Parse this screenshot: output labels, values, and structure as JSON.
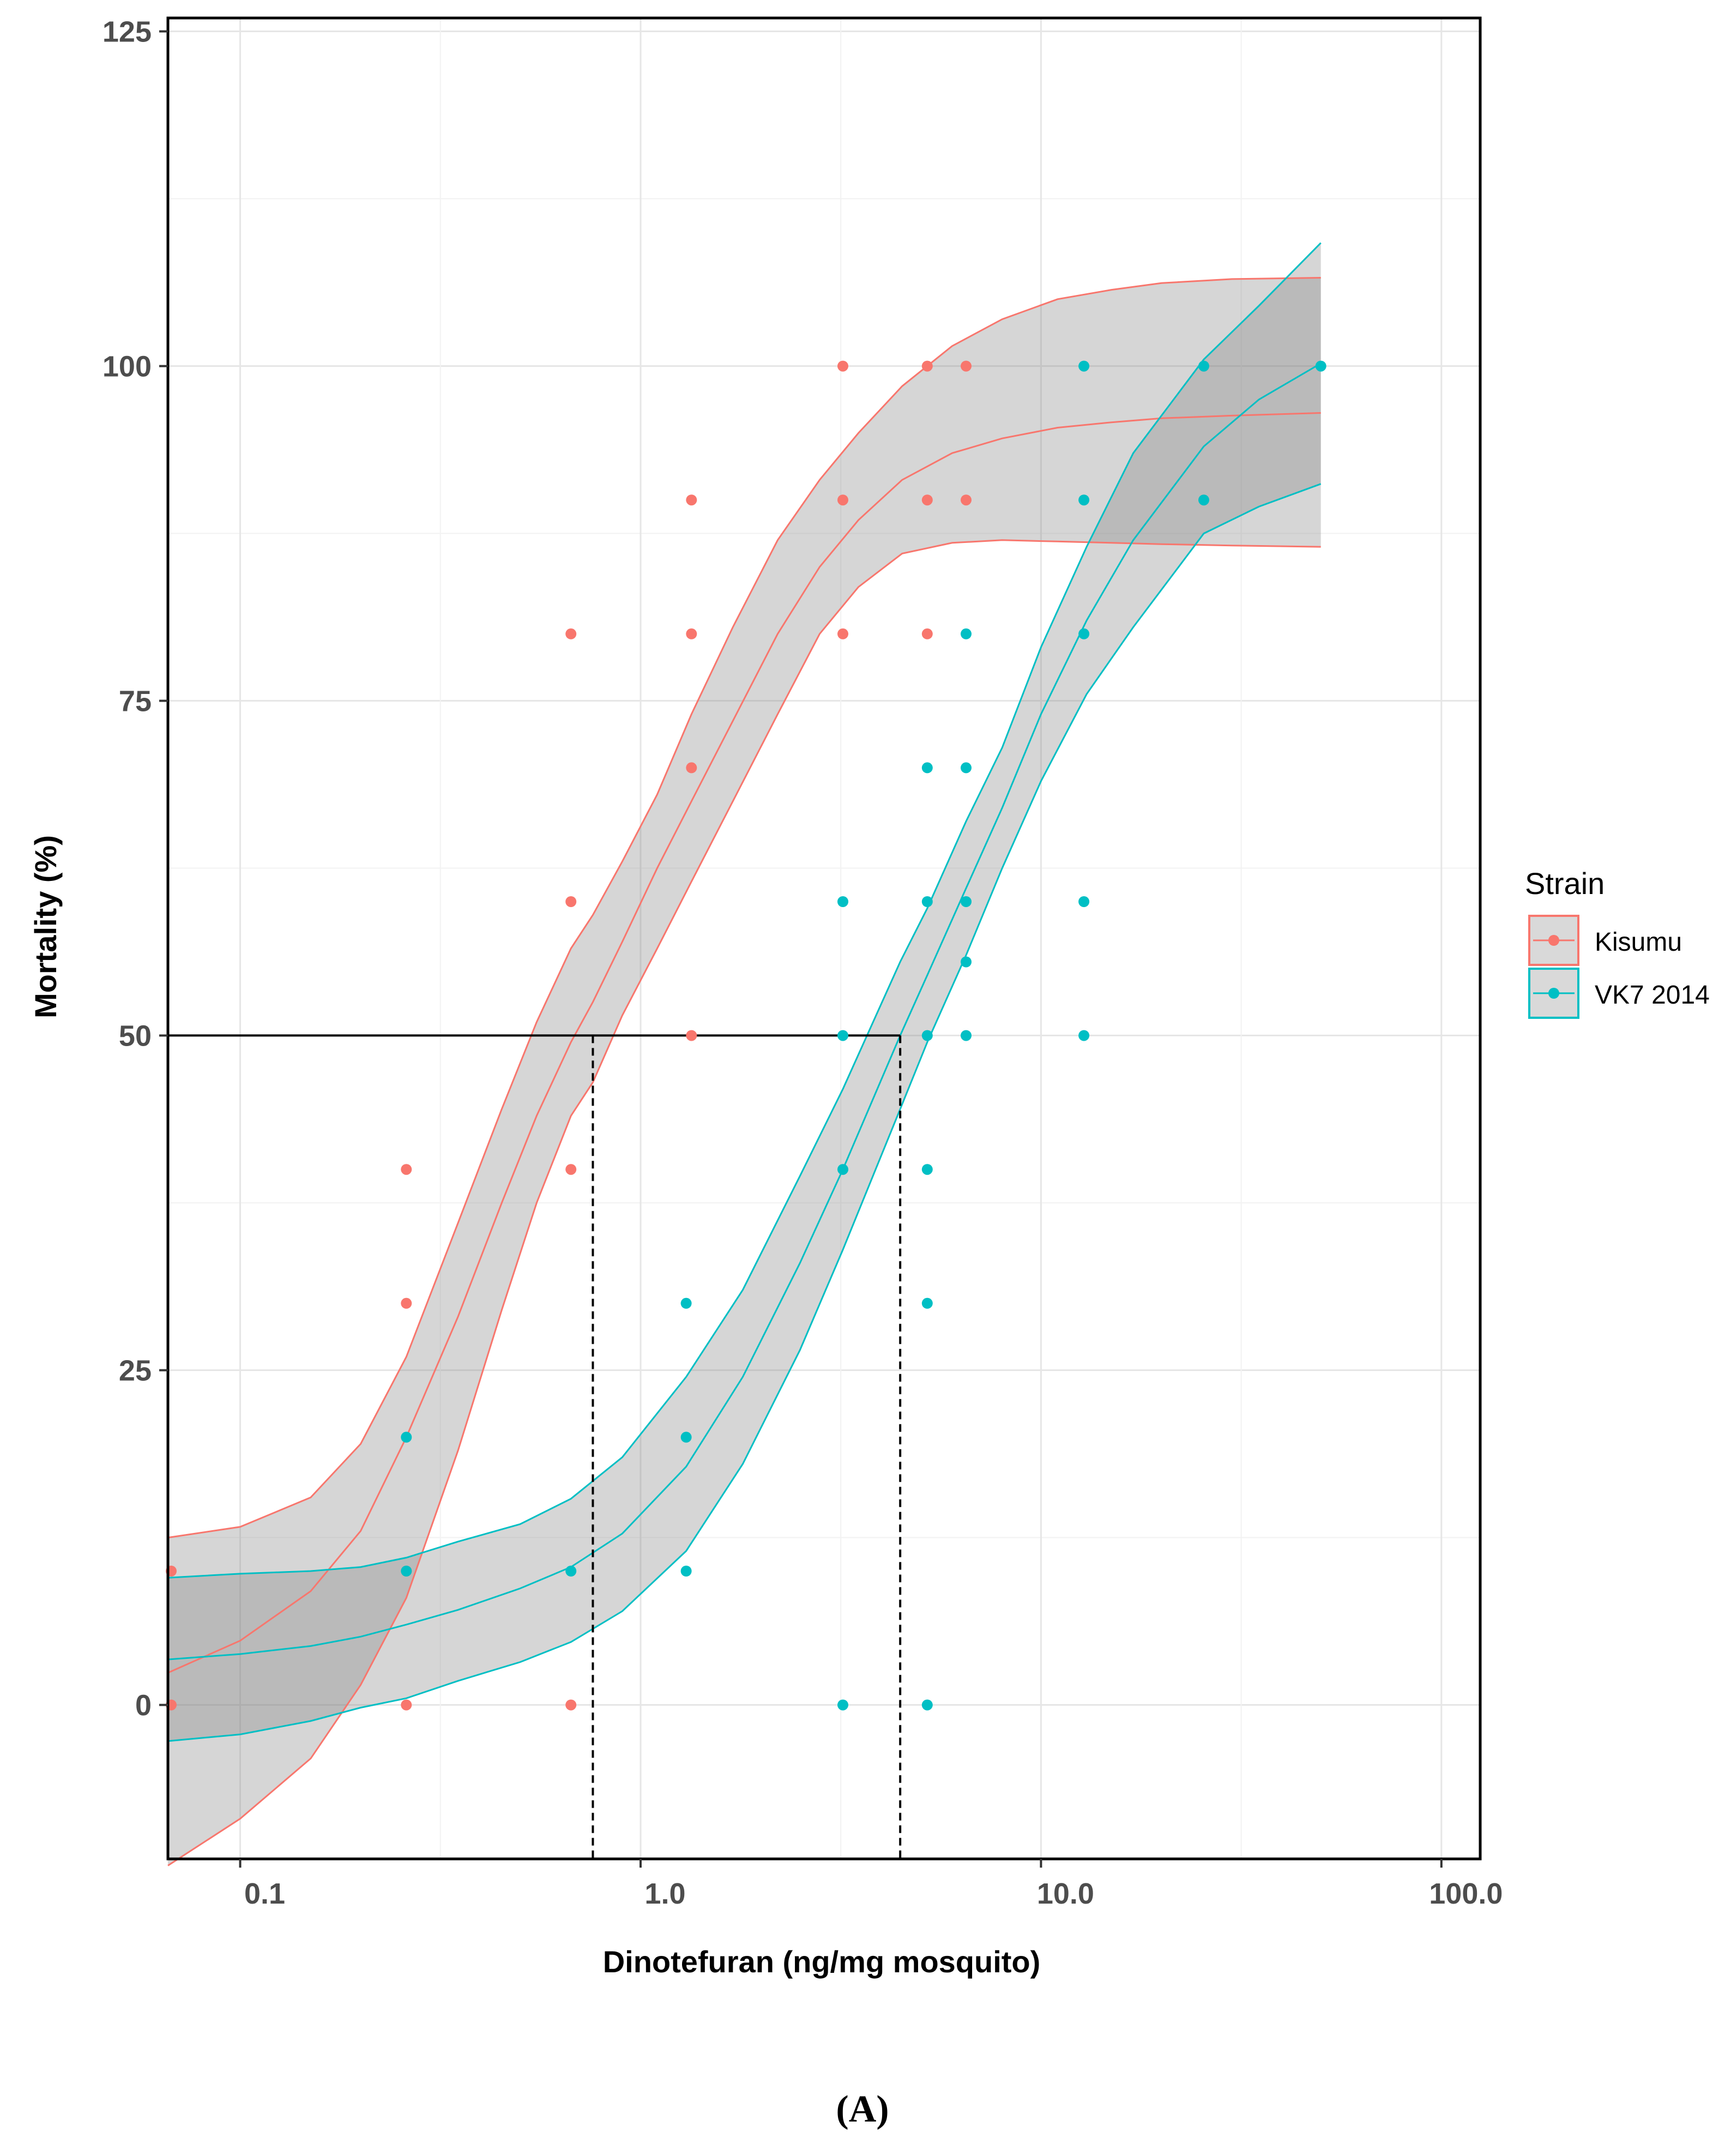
{
  "chart_data": {
    "type": "scatter",
    "title": "",
    "xlabel": "Dinotefuran (ng/mg mosquito)",
    "ylabel": "Mortality (%)",
    "x_scale": "log10",
    "xlim": [
      0.066,
      125
    ],
    "ylim": [
      -11.5,
      126
    ],
    "x_ticks": [
      {
        "value": 0.1,
        "label": "0.1"
      },
      {
        "value": 1,
        "label": "1.0"
      },
      {
        "value": 10,
        "label": "10.0"
      },
      {
        "value": 100,
        "label": "100.0"
      }
    ],
    "y_ticks": [
      {
        "value": 0,
        "label": "0"
      },
      {
        "value": 25,
        "label": "25"
      },
      {
        "value": 50,
        "label": "50"
      },
      {
        "value": 75,
        "label": "75"
      },
      {
        "value": 100,
        "label": "100"
      },
      {
        "value": 125,
        "label": "125"
      }
    ],
    "grid": true,
    "legend": {
      "title": "Strain",
      "position": "right"
    },
    "panel_label": "(A)",
    "reference_lines": {
      "y": 50,
      "x_lc50": [
        0.76,
        4.45
      ]
    },
    "series": [
      {
        "name": "Kisumu",
        "color": "#f8766d",
        "lc50": 0.76,
        "points": [
          {
            "x": 0.066,
            "y": 10
          },
          {
            "x": 0.066,
            "y": 0
          },
          {
            "x": 0.26,
            "y": 40
          },
          {
            "x": 0.26,
            "y": 30
          },
          {
            "x": 0.26,
            "y": 10
          },
          {
            "x": 0.26,
            "y": 0
          },
          {
            "x": 0.67,
            "y": 80
          },
          {
            "x": 0.67,
            "y": 60
          },
          {
            "x": 0.67,
            "y": 40
          },
          {
            "x": 0.67,
            "y": 0
          },
          {
            "x": 1.34,
            "y": 90
          },
          {
            "x": 1.34,
            "y": 80
          },
          {
            "x": 1.34,
            "y": 70
          },
          {
            "x": 1.34,
            "y": 50
          },
          {
            "x": 3.2,
            "y": 100
          },
          {
            "x": 3.2,
            "y": 90
          },
          {
            "x": 3.2,
            "y": 80
          },
          {
            "x": 5.2,
            "y": 100
          },
          {
            "x": 5.2,
            "y": 90
          },
          {
            "x": 5.2,
            "y": 80
          },
          {
            "x": 6.5,
            "y": 100
          },
          {
            "x": 6.5,
            "y": 90
          }
        ],
        "fit": {
          "x": [
            0.066,
            0.1,
            0.15,
            0.2,
            0.26,
            0.35,
            0.45,
            0.55,
            0.67,
            0.76,
            0.9,
            1.1,
            1.34,
            1.7,
            2.2,
            2.8,
            3.5,
            4.5,
            6,
            8,
            11,
            15,
            20,
            30,
            50
          ],
          "y": [
            2.4,
            4.8,
            8.5,
            13,
            20,
            29,
            37.5,
            44,
            49.5,
            52.5,
            57,
            62.5,
            67.5,
            73.5,
            80,
            85,
            88.5,
            91.5,
            93.5,
            94.6,
            95.4,
            95.8,
            96.1,
            96.3,
            96.5
          ],
          "lower": [
            -12,
            -8.5,
            -4,
            1.5,
            8,
            19,
            29.5,
            37.5,
            44,
            46.5,
            51.5,
            56.5,
            61.5,
            67.5,
            74,
            80,
            83.5,
            86,
            86.8,
            87,
            86.9,
            86.8,
            86.7,
            86.6,
            86.5
          ],
          "upper": [
            12.5,
            13.3,
            15.5,
            19.5,
            26,
            36,
            44.5,
            51,
            56.5,
            59,
            63,
            68,
            74,
            80.5,
            87,
            91.5,
            95,
            98.5,
            101.5,
            103.5,
            105,
            105.7,
            106.2,
            106.5,
            106.6
          ]
        }
      },
      {
        "name": "VK7 2014",
        "color": "#00bfc4",
        "lc50": 4.45,
        "points": [
          {
            "x": 0.26,
            "y": 20
          },
          {
            "x": 0.26,
            "y": 10
          },
          {
            "x": 0.67,
            "y": 10
          },
          {
            "x": 1.3,
            "y": 30
          },
          {
            "x": 1.3,
            "y": 20
          },
          {
            "x": 1.3,
            "y": 10
          },
          {
            "x": 3.2,
            "y": 60
          },
          {
            "x": 3.2,
            "y": 50
          },
          {
            "x": 3.2,
            "y": 40
          },
          {
            "x": 3.2,
            "y": 0
          },
          {
            "x": 5.2,
            "y": 70
          },
          {
            "x": 5.2,
            "y": 60
          },
          {
            "x": 5.2,
            "y": 50
          },
          {
            "x": 5.2,
            "y": 40
          },
          {
            "x": 5.2,
            "y": 30
          },
          {
            "x": 5.2,
            "y": 0
          },
          {
            "x": 6.5,
            "y": 80
          },
          {
            "x": 6.5,
            "y": 70
          },
          {
            "x": 6.5,
            "y": 60
          },
          {
            "x": 6.5,
            "y": 55.5
          },
          {
            "x": 6.5,
            "y": 50
          },
          {
            "x": 12.8,
            "y": 100
          },
          {
            "x": 12.8,
            "y": 90
          },
          {
            "x": 12.8,
            "y": 80
          },
          {
            "x": 12.8,
            "y": 60
          },
          {
            "x": 12.8,
            "y": 50
          },
          {
            "x": 25.5,
            "y": 100
          },
          {
            "x": 25.5,
            "y": 90
          },
          {
            "x": 50,
            "y": 100
          }
        ],
        "fit": {
          "x": [
            0.066,
            0.1,
            0.15,
            0.2,
            0.26,
            0.35,
            0.5,
            0.67,
            0.9,
            1.3,
            1.8,
            2.5,
            3.2,
            4.45,
            5.2,
            6.5,
            8,
            10,
            13,
            17,
            25.5,
            35,
            50
          ],
          "y": [
            3.4,
            3.8,
            4.4,
            5.1,
            6,
            7.1,
            8.7,
            10.3,
            12.8,
            17.8,
            24.5,
            33,
            40,
            50,
            54.5,
            61,
            67,
            74,
            81,
            87,
            94,
            97.5,
            100.2
          ],
          "lower": [
            -2.7,
            -2.2,
            -1.2,
            -0.2,
            0.5,
            1.8,
            3.2,
            4.7,
            7,
            11.5,
            18,
            26.5,
            34,
            44.5,
            49.5,
            56,
            62.5,
            69,
            75.5,
            80.5,
            87.5,
            89.5,
            91.2
          ],
          "upper": [
            9.5,
            9.8,
            10,
            10.3,
            11,
            12.2,
            13.5,
            15.4,
            18.5,
            24.5,
            31,
            39.5,
            46,
            55.5,
            59.5,
            66,
            71.5,
            79,
            86.5,
            93.5,
            100.5,
            104.5,
            109.2
          ]
        }
      }
    ]
  }
}
